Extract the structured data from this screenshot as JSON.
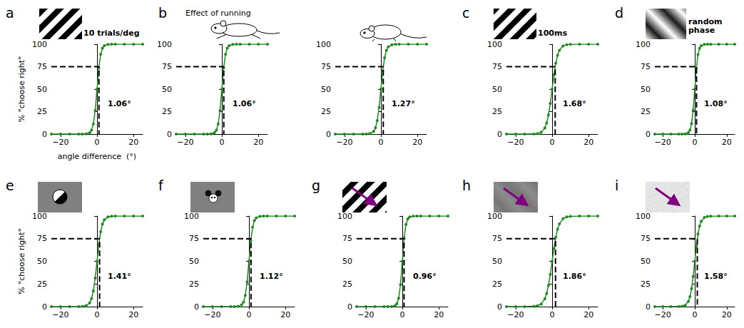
{
  "chart_data": [
    {
      "panel": "a",
      "title": "10 trials/deg",
      "type": "line",
      "color": "#1a8a1a",
      "marker": "circle",
      "ylabel": "% \"choose right\"",
      "xlabel": "angle difference  (°)",
      "x": [
        -25,
        -20,
        -15,
        -10,
        -8,
        -6,
        -4,
        -3,
        -2,
        -1,
        0,
        1,
        2,
        3,
        4,
        6,
        8,
        10,
        15,
        20,
        25
      ],
      "values": [
        0,
        0,
        0,
        0,
        0,
        0.2,
        1.6,
        4.3,
        11.2,
        26.2,
        50,
        73.8,
        88.8,
        95.7,
        98.4,
        99.8,
        100,
        100,
        100,
        100,
        100
      ],
      "criterion": 75,
      "threshold": 1.06,
      "threshold_label": "1.06°",
      "xlim": [
        -25,
        25
      ],
      "xticks": [
        {
          "value": -20,
          "label": "−20"
        },
        0,
        20
      ],
      "ylim": [
        0,
        100
      ],
      "yticks": [
        0,
        25,
        50,
        75,
        100
      ]
    },
    {
      "panel": "b",
      "title": "Effect of running",
      "type": "line",
      "color": "#1a8a1a",
      "marker": "circle",
      "x": [
        -25,
        -20,
        -15,
        -10,
        -8,
        -6,
        -4,
        -3,
        -2,
        -1,
        0,
        1,
        2,
        3,
        4,
        6,
        8,
        10,
        15,
        20,
        25
      ],
      "values": [
        0,
        0,
        0,
        0,
        0,
        0.2,
        1.6,
        4.3,
        11.2,
        26.2,
        50,
        73.8,
        88.8,
        95.7,
        98.4,
        99.8,
        100,
        100,
        100,
        100,
        100
      ],
      "criterion": 75,
      "threshold": 1.06,
      "threshold_label": "1.06°",
      "xlim": [
        -25,
        25
      ],
      "xticks": [
        {
          "value": -20,
          "label": "−20"
        },
        0,
        20
      ],
      "ylim": [
        0,
        100
      ],
      "yticks": [
        0,
        25,
        50,
        75,
        100
      ]
    },
    {
      "type": "line",
      "color": "#1a8a1a",
      "marker": "circle",
      "x": [
        -25,
        -20,
        -15,
        -10,
        -8,
        -6,
        -4,
        -3,
        -2,
        -1,
        0,
        1,
        2,
        3,
        4,
        6,
        8,
        10,
        15,
        20,
        25
      ],
      "values": [
        0,
        0,
        0,
        0,
        0.1,
        0.6,
        3.0,
        6.9,
        15.1,
        29.6,
        50,
        70.4,
        84.9,
        93.1,
        97.0,
        99.4,
        99.9,
        100,
        100,
        100,
        100
      ],
      "criterion": 75,
      "threshold": 1.27,
      "threshold_label": "1.27°",
      "xlim": [
        -25,
        25
      ],
      "xticks": [
        {
          "value": -20,
          "label": "−20"
        },
        0,
        20
      ],
      "ylim": [
        0,
        100
      ],
      "yticks": [
        0,
        25,
        50,
        75,
        100
      ]
    },
    {
      "panel": "c",
      "title": "100ms",
      "type": "line",
      "color": "#1a8a1a",
      "marker": "circle",
      "x": [
        -25,
        -20,
        -15,
        -10,
        -8,
        -6,
        -4,
        -3,
        -2,
        -1,
        0,
        1,
        2,
        3,
        4,
        6,
        8,
        10,
        15,
        20,
        25
      ],
      "values": [
        0,
        0,
        0,
        0.1,
        0.5,
        1.9,
        6.8,
        12.3,
        21.3,
        34.2,
        50,
        65.8,
        78.7,
        87.7,
        93.2,
        98.1,
        99.5,
        99.9,
        100,
        100,
        100
      ],
      "criterion": 75,
      "threshold": 1.68,
      "threshold_label": "1.68°",
      "xlim": [
        -25,
        25
      ],
      "xticks": [
        {
          "value": -20,
          "label": "−20"
        },
        0,
        20
      ],
      "ylim": [
        0,
        100
      ],
      "yticks": [
        0,
        25,
        50,
        75,
        100
      ]
    },
    {
      "panel": "d",
      "title": "random phase",
      "type": "line",
      "color": "#1a8a1a",
      "marker": "circle",
      "x": [
        -25,
        -20,
        -15,
        -10,
        -8,
        -6,
        -4,
        -3,
        -2,
        -1,
        0,
        1,
        2,
        3,
        4,
        6,
        8,
        10,
        15,
        20,
        25
      ],
      "values": [
        0,
        0,
        0,
        0,
        0,
        0.2,
        1.7,
        4.5,
        11.6,
        26.5,
        50,
        73.5,
        88.4,
        95.5,
        98.3,
        99.8,
        100,
        100,
        100,
        100,
        100
      ],
      "criterion": 75,
      "threshold": 1.08,
      "threshold_label": "1.08°",
      "xlim": [
        -25,
        25
      ],
      "xticks": [
        {
          "value": -20,
          "label": "−20"
        },
        0,
        20
      ],
      "ylim": [
        0,
        100
      ],
      "yticks": [
        0,
        25,
        50,
        75,
        100
      ]
    },
    {
      "panel": "e",
      "type": "line",
      "color": "#1a8a1a",
      "marker": "circle",
      "ylabel": "% \"choose right\"",
      "x": [
        -25,
        -20,
        -15,
        -10,
        -8,
        -6,
        -4,
        -3,
        -2,
        -1,
        0,
        1,
        2,
        3,
        4,
        6,
        8,
        10,
        15,
        20,
        25
      ],
      "values": [
        0,
        0,
        0,
        0,
        0.2,
        0.9,
        4.2,
        8.8,
        17.4,
        31.5,
        50,
        68.5,
        82.6,
        91.2,
        95.8,
        99.1,
        99.8,
        100,
        100,
        100,
        100
      ],
      "criterion": 75,
      "threshold": 1.41,
      "threshold_label": "1.41°",
      "xlim": [
        -25,
        25
      ],
      "xticks": [
        {
          "value": -20,
          "label": "−20"
        },
        0,
        20
      ],
      "ylim": [
        0,
        100
      ],
      "yticks": [
        0,
        25,
        50,
        75,
        100
      ]
    },
    {
      "panel": "f",
      "type": "line",
      "color": "#1a8a1a",
      "marker": "circle",
      "x": [
        -25,
        -20,
        -15,
        -10,
        -8,
        -6,
        -4,
        -3,
        -2,
        -1,
        0,
        1,
        2,
        3,
        4,
        6,
        8,
        10,
        15,
        20,
        25
      ],
      "values": [
        0,
        0,
        0,
        0,
        0,
        0.3,
        1.9,
        5.0,
        12.3,
        27.3,
        50,
        72.7,
        87.7,
        95.0,
        98.1,
        99.7,
        100,
        100,
        100,
        100,
        100
      ],
      "criterion": 75,
      "threshold": 1.12,
      "threshold_label": "1.12°",
      "xlim": [
        -25,
        25
      ],
      "xticks": [
        {
          "value": -20,
          "label": "−20"
        },
        0,
        20
      ],
      "ylim": [
        0,
        100
      ],
      "yticks": [
        0,
        25,
        50,
        75,
        100
      ]
    },
    {
      "panel": "g",
      "type": "line",
      "color": "#1a8a1a",
      "marker": "circle",
      "x": [
        -25,
        -20,
        -15,
        -10,
        -8,
        -6,
        -4,
        -3,
        -2,
        -1,
        0,
        1,
        2,
        3,
        4,
        6,
        8,
        10,
        15,
        20,
        25
      ],
      "values": [
        0,
        0,
        0,
        0,
        0,
        0.1,
        1.0,
        3.1,
        9.2,
        24.2,
        50,
        75.8,
        90.8,
        96.9,
        99.0,
        99.9,
        100,
        100,
        100,
        100,
        100
      ],
      "criterion": 75,
      "threshold": 0.96,
      "threshold_label": "0.96°",
      "xlim": [
        -25,
        25
      ],
      "xticks": [
        {
          "value": -20,
          "label": "−20"
        },
        0,
        20
      ],
      "ylim": [
        0,
        100
      ],
      "yticks": [
        0,
        25,
        50,
        75,
        100
      ]
    },
    {
      "panel": "h",
      "type": "line",
      "color": "#1a8a1a",
      "marker": "circle",
      "x": [
        -25,
        -20,
        -15,
        -10,
        -8,
        -6,
        -4,
        -3,
        -2,
        -1,
        0,
        1,
        2,
        3,
        4,
        6,
        8,
        10,
        15,
        20,
        25
      ],
      "values": [
        0,
        0,
        0,
        0.3,
        0.9,
        2.8,
        8.6,
        14.5,
        23.5,
        35.6,
        50,
        64.4,
        76.5,
        85.5,
        91.4,
        97.2,
        99.1,
        99.7,
        100,
        100,
        100
      ],
      "criterion": 75,
      "threshold": 1.86,
      "threshold_label": "1.86°",
      "xlim": [
        -25,
        25
      ],
      "xticks": [
        {
          "value": -20,
          "label": "−20"
        },
        0,
        20
      ],
      "ylim": [
        0,
        100
      ],
      "yticks": [
        0,
        25,
        50,
        75,
        100
      ]
    },
    {
      "panel": "i",
      "type": "line",
      "color": "#1a8a1a",
      "marker": "circle",
      "x": [
        -25,
        -20,
        -15,
        -10,
        -8,
        -6,
        -4,
        -3,
        -2,
        -1,
        0,
        1,
        2,
        3,
        4,
        6,
        8,
        10,
        15,
        20,
        25
      ],
      "values": [
        0,
        0,
        0,
        0.1,
        0.4,
        1.5,
        5.8,
        11.0,
        19.9,
        33.3,
        50,
        66.7,
        80.1,
        89.0,
        94.2,
        98.5,
        99.6,
        99.9,
        100,
        100,
        100
      ],
      "criterion": 75,
      "threshold": 1.58,
      "threshold_label": "1.58°",
      "xlim": [
        -25,
        25
      ],
      "xticks": [
        {
          "value": -20,
          "label": "−20"
        },
        0,
        20
      ],
      "ylim": [
        0,
        100
      ],
      "yticks": [
        0,
        25,
        50,
        75,
        100
      ]
    }
  ]
}
